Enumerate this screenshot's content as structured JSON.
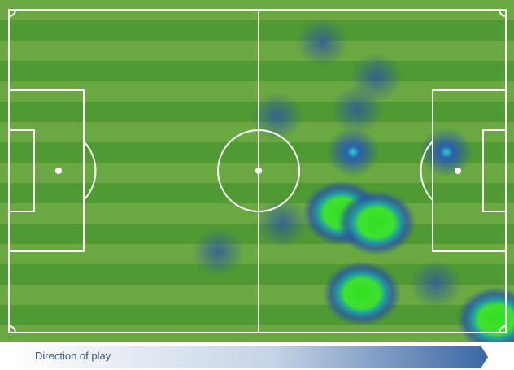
{
  "direction_label": "Direction of play",
  "colors": {
    "grass_light": "#6aa842",
    "grass_dark": "#4f9a33",
    "line": "#ffffff",
    "arrow": "#3a66a3"
  },
  "heatmap_points": [
    {
      "w": 0.4
    },
    {
      "w": 0.4
    },
    {
      "w": 0.4
    },
    {
      "w": 0.4
    },
    {
      "w": 0.6
    },
    {
      "w": 0.6
    },
    {
      "w": 1.0
    },
    {
      "w": 1.0
    },
    {
      "w": 1.0
    },
    {
      "w": 1.0
    },
    {
      "w": 0.4
    },
    {
      "w": 0.4
    },
    {
      "w": 0.4
    }
  ]
}
